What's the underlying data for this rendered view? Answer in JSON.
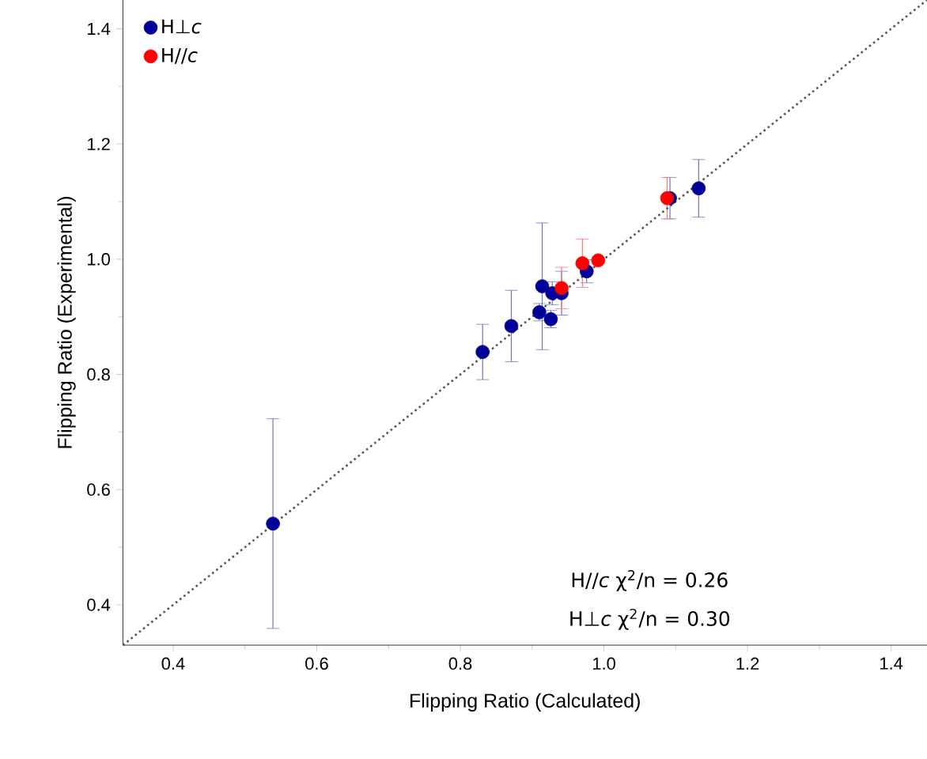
{
  "chart_data": {
    "type": "scatter",
    "xlabel": "Flipping Ratio (Calculated)",
    "ylabel": "Flipping Ratio (Experimental)",
    "xlim": [
      0.33,
      1.45
    ],
    "ylim": [
      0.33,
      1.45
    ],
    "xticks": [
      0.4,
      0.6,
      0.8,
      {
        "value": 1.0,
        "label": "1.0"
      },
      1.2,
      1.4
    ],
    "yticks": [
      0.4,
      0.6,
      0.8,
      {
        "value": 1.0,
        "label": "1.0"
      },
      1.2,
      1.4
    ],
    "grid": false,
    "legend": "top left",
    "annotations": [
      "H//*c* χ$^{2}$/n = 0.26",
      "H⊥*c* χ$^{2}$/n = 0.30"
    ],
    "series": [
      {
        "name": "H⊥*c*",
        "color": "#000099",
        "marker": "circle",
        "x": [
          0.831,
          0.871,
          0.914,
          0.91,
          0.926,
          0.928,
          0.941,
          0.976,
          1.092,
          1.132,
          0.539
        ],
        "values": [
          0.839,
          0.884,
          0.953,
          0.908,
          0.896,
          0.941,
          0.941,
          0.979,
          1.106,
          1.123,
          0.541
        ],
        "errors": [
          0.048,
          0.062,
          0.11,
          0.015,
          0.015,
          0.02,
          0.038,
          0.02,
          0.036,
          0.05,
          0.182
        ]
      },
      {
        "name": "H//*c*",
        "color": "#ff0000",
        "marker": "circle",
        "x": [
          0.941,
          0.97,
          0.992,
          1.088
        ],
        "values": [
          0.95,
          0.993,
          0.998,
          1.106
        ],
        "errors": [
          0.036,
          0.042,
          null,
          0.036
        ]
      },
      {
        "type": "line",
        "line_style": "dotted",
        "marker": "none",
        "color": "#555555",
        "x": [
          0.33,
          1.45
        ],
        "values": [
          0.33,
          1.45
        ]
      }
    ]
  }
}
